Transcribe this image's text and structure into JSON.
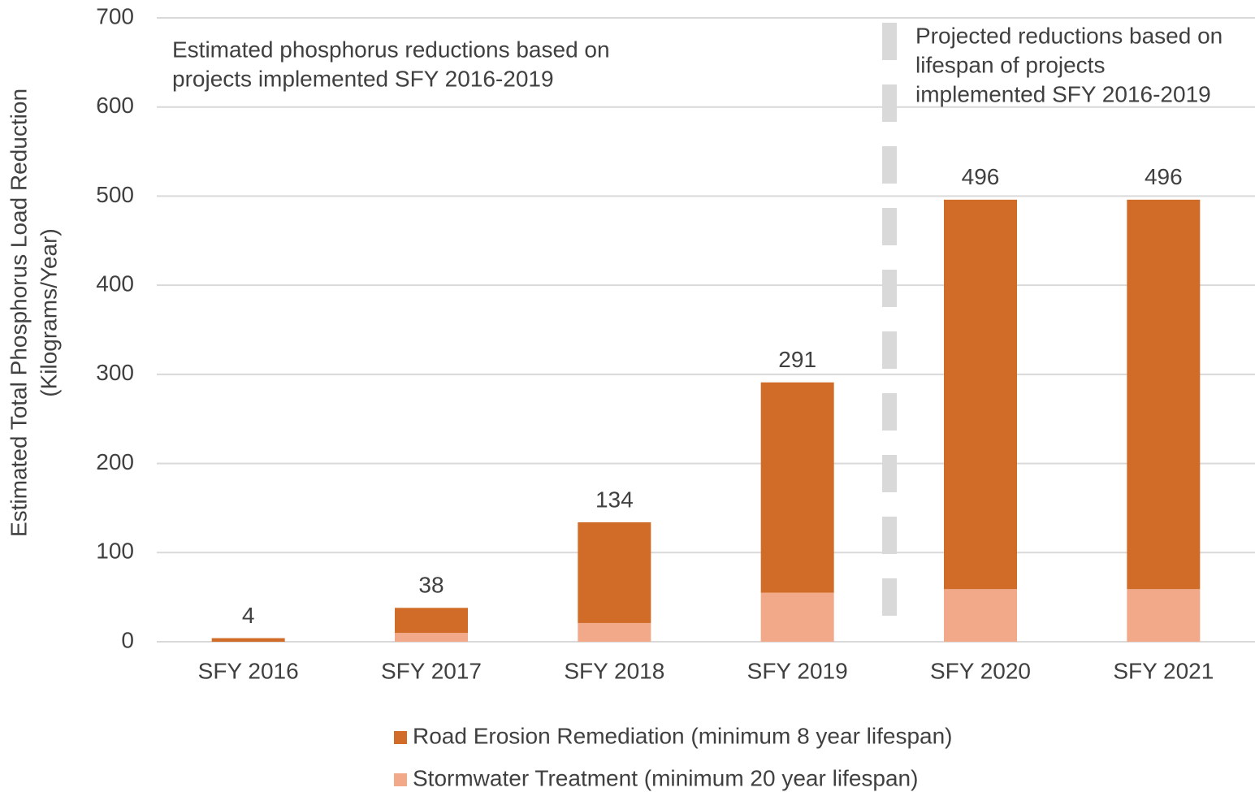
{
  "chart_data": {
    "type": "stacked_bar",
    "y_label": [
      "Estimated Total Phosphorus Load Reduction",
      "(Kilograms/Year)"
    ],
    "categories": [
      "SFY 2016",
      "SFY 2017",
      "SFY 2018",
      "SFY 2019",
      "SFY 2020",
      "SFY 2021"
    ],
    "series": [
      {
        "name": "Road Erosion Remediation (minimum 8 year lifespan)",
        "color": "#d06c28",
        "values": [
          4,
          28,
          113,
          236,
          437,
          437
        ]
      },
      {
        "name": "Stormwater Treatment (minimum 20 year lifespan)",
        "color": "#f2a98a",
        "values": [
          0,
          10,
          21,
          55,
          59,
          59
        ]
      }
    ],
    "totals": [
      4,
      38,
      134,
      291,
      496,
      496
    ],
    "ylim": [
      0,
      700
    ],
    "yticks": [
      0,
      100,
      200,
      300,
      400,
      500,
      600,
      700
    ],
    "grid": true,
    "annotations": [
      [
        "Estimated phosphorus reductions based on",
        "projects implemented SFY 2016-2019"
      ],
      [
        "Projected reductions based on",
        "lifespan of projects",
        "implemented SFY 2016-2019"
      ]
    ]
  }
}
